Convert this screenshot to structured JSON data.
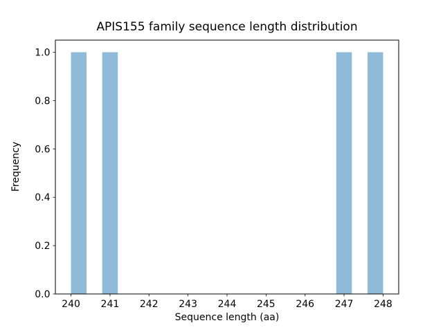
{
  "chart_data": {
    "type": "bar",
    "subtype": "histogram",
    "title": "APIS155 family sequence length distribution",
    "xlabel": "Sequence length (aa)",
    "ylabel": "Frequency",
    "xlim": [
      239.6,
      248.4
    ],
    "ylim": [
      0,
      1.05
    ],
    "xticks": [
      240,
      241,
      242,
      243,
      244,
      245,
      246,
      247,
      248
    ],
    "yticks": [
      0.0,
      0.2,
      0.4,
      0.6,
      0.8,
      1.0
    ],
    "bin_width": 0.4,
    "bars": [
      {
        "x0": 240.0,
        "x1": 240.4,
        "height": 1.0
      },
      {
        "x0": 240.8,
        "x1": 241.2,
        "height": 1.0
      },
      {
        "x0": 246.8,
        "x1": 247.2,
        "height": 1.0
      },
      {
        "x0": 247.6,
        "x1": 248.0,
        "height": 1.0
      }
    ],
    "sequence_lengths": [
      240,
      241,
      247,
      248
    ],
    "frequencies": [
      1,
      1,
      1,
      1
    ],
    "bar_color": "#8fbbd9",
    "spine_color": "#000000",
    "background_color": "#ffffff",
    "grid": false,
    "legend": null
  }
}
